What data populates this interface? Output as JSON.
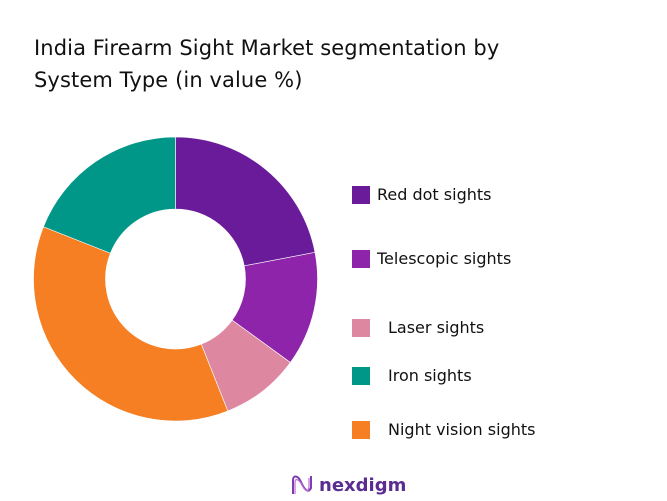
{
  "title": "India Firearm Sight Market segmentation by System Type (in value %)",
  "title_lines": [
    "India Firearm Sight Market segmentation by",
    "System Type (in value %)"
  ],
  "legend": [
    {
      "label": "Red dot sights",
      "color": "#6a1b9a"
    },
    {
      "label": "Telescopic sights",
      "color": "#8e24aa"
    },
    {
      "label": "Laser sights",
      "color": "#de87a0"
    },
    {
      "label": "Iron sights",
      "color": "#009688"
    },
    {
      "label": "Night vision sights",
      "color": "#f57f22"
    }
  ],
  "brand": {
    "name": "nexdigm",
    "icon": "nexdigm-wave-logo-icon"
  },
  "chart_data": {
    "type": "pie",
    "subtype": "donut",
    "title": "India Firearm Sight Market segmentation by System Type (in value %)",
    "categories": [
      "Red dot sights",
      "Telescopic sights",
      "Laser sights",
      "Night vision sights",
      "Iron sights"
    ],
    "values": [
      22,
      13,
      9,
      37,
      19
    ],
    "colors": [
      "#6a1b9a",
      "#8e24aa",
      "#de87a0",
      "#f57f22",
      "#009688"
    ],
    "legend_order": [
      "Red dot sights",
      "Telescopic sights",
      "Laser sights",
      "Iron sights",
      "Night vision sights"
    ],
    "start_angle": "12 o'clock, clockwise",
    "legend_position": "right",
    "data_labels": false
  }
}
